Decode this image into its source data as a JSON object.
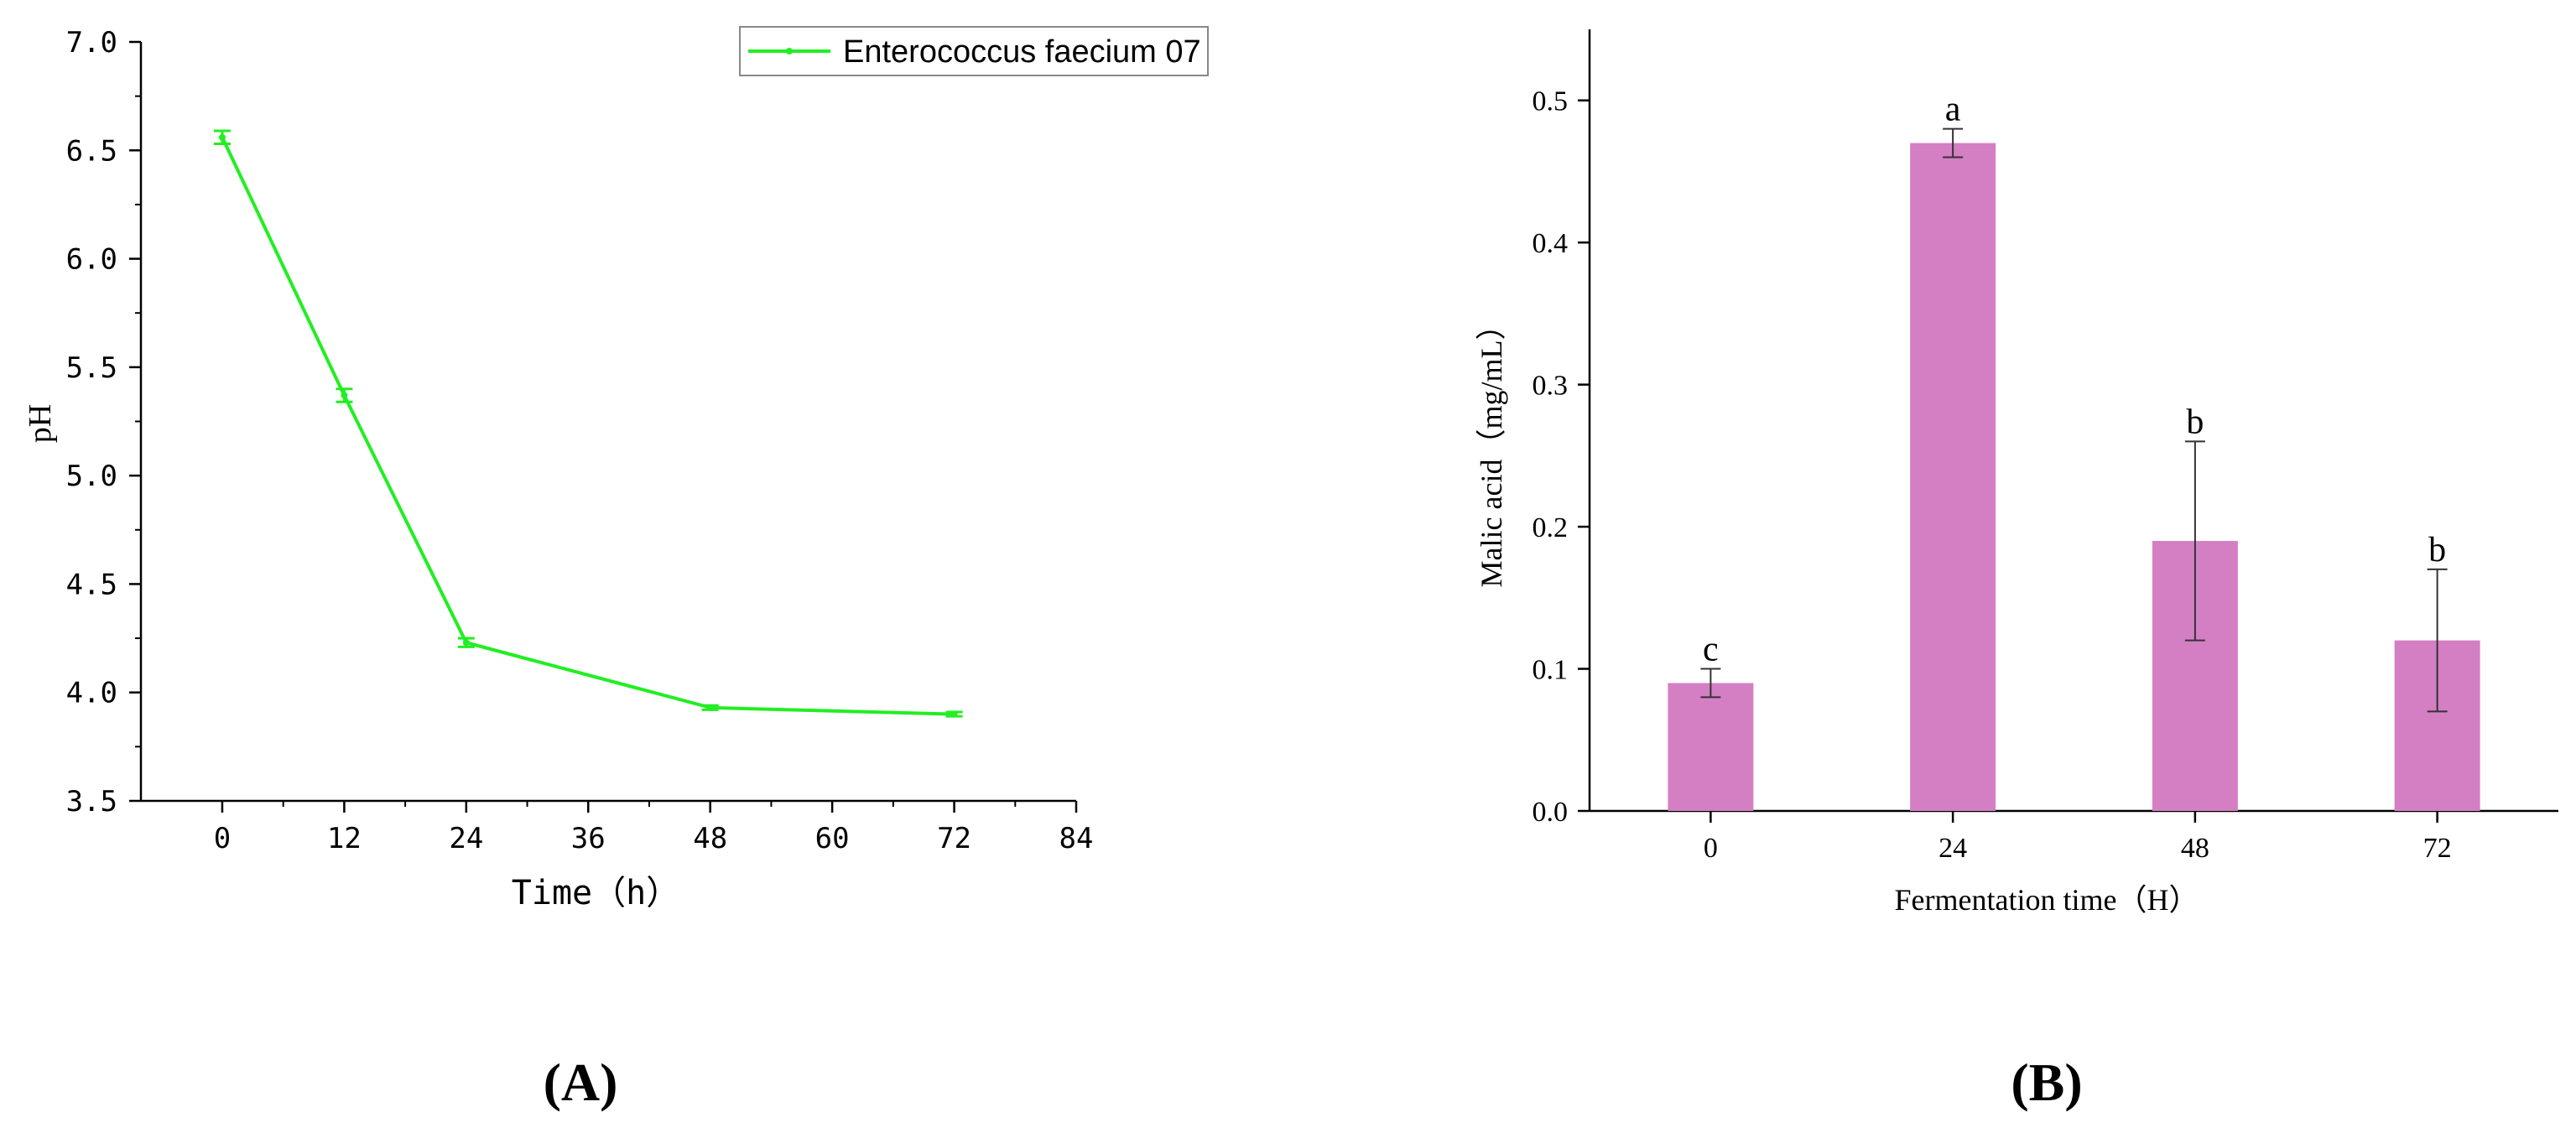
{
  "chart_data": [
    {
      "type": "line",
      "panel_label": "(A)",
      "title": "",
      "xlabel": "Time（h）",
      "ylabel": "pH",
      "xlim": [
        -8,
        84
      ],
      "ylim": [
        3.5,
        7.0
      ],
      "xticks": [
        0,
        12,
        24,
        36,
        48,
        60,
        72,
        84
      ],
      "yticks": [
        3.5,
        4.0,
        4.5,
        5.0,
        5.5,
        6.0,
        6.5,
        7.0
      ],
      "xtick_labels": [
        "0",
        "12",
        "24",
        "36",
        "48",
        "60",
        "72",
        "84"
      ],
      "ytick_labels": [
        "3.5",
        "4.0",
        "4.5",
        "5.0",
        "5.5",
        "6.0",
        "6.5",
        "7.0"
      ],
      "legend_position": "top-right",
      "grid": false,
      "series": [
        {
          "name": "Enterococcus faecium 07",
          "color": "#22ee22",
          "x": [
            0,
            12,
            24,
            48,
            72
          ],
          "y": [
            6.56,
            5.37,
            4.23,
            3.93,
            3.9
          ],
          "error": [
            0.03,
            0.03,
            0.02,
            0.01,
            0.01
          ]
        }
      ]
    },
    {
      "type": "bar",
      "panel_label": "(B)",
      "title": "",
      "xlabel": "Fermentation time（H）",
      "ylabel": "Malic acid（mg/mL）",
      "ylim": [
        0,
        0.55
      ],
      "yticks": [
        0.0,
        0.1,
        0.2,
        0.3,
        0.4,
        0.5
      ],
      "ytick_labels": [
        "0.0",
        "0.1",
        "0.2",
        "0.3",
        "0.4",
        "0.5"
      ],
      "grid": false,
      "categories": [
        "0",
        "24",
        "48",
        "72"
      ],
      "bar_color": "#d47fc4",
      "series": [
        {
          "values": [
            0.09,
            0.47,
            0.19,
            0.12
          ],
          "error": [
            0.01,
            0.01,
            0.07,
            0.05
          ],
          "significance_labels": [
            "c",
            "a",
            "b",
            "b"
          ]
        }
      ]
    }
  ]
}
